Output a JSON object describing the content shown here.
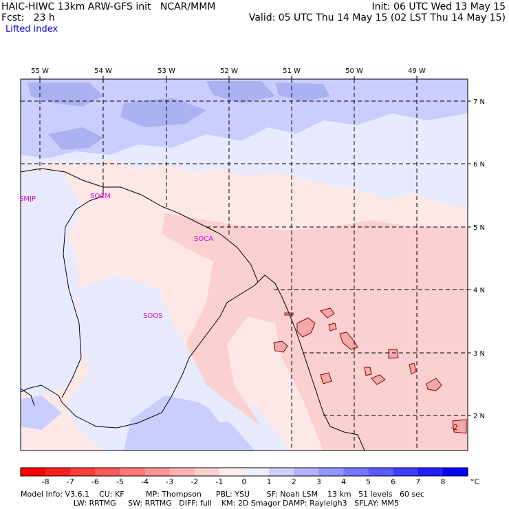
{
  "header": {
    "model_line": "HAIC-HIWC 13km ARW-GFS init   NCAR/MMM",
    "fcst_line": "Fcst:   23 h",
    "field_name": "Lifted index",
    "init_line": "Init: 06 UTC Wed 13 May 15",
    "valid_line": "Valid: 05 UTC Thu 14 May 15 (02 LST Thu 14 May 15)"
  },
  "map": {
    "lon_labels": [
      "55 W",
      "54 W",
      "53 W",
      "52 W",
      "51 W",
      "50 W",
      "49 W"
    ],
    "lat_labels": [
      "7 N",
      "6 N",
      "5 N",
      "4 N",
      "3 N",
      "2 N"
    ],
    "stations": [
      "SMJP",
      "SOCM",
      "SOCA",
      "SOOS"
    ],
    "contour_label": "-2",
    "colors": {
      "positive_light": "#e8ebff",
      "positive_mid": "#c9ceff",
      "positive_deep": "#aab2f2",
      "negative_light": "#fde7e7",
      "negative_mid": "#fad0d0",
      "negative_contour_fill": "#f2a9a9",
      "contour_line": "#8b0000"
    }
  },
  "colorbar": {
    "labels": [
      "-8",
      "-7",
      "-6",
      "-5",
      "-4",
      "-3",
      "-2",
      "-1",
      "0",
      "1",
      "2",
      "3",
      "4",
      "5",
      "6",
      "7",
      "8"
    ],
    "unit": "°C",
    "colors": [
      "#ff0000",
      "#ff1f1f",
      "#ff3d3d",
      "#ff5a5a",
      "#ff7777",
      "#ff9494",
      "#ffb3b3",
      "#ffd0d0",
      "#ffeded",
      "#ededff",
      "#d0d0ff",
      "#b3b3ff",
      "#9494ff",
      "#7777ff",
      "#5a5aff",
      "#3d3dff",
      "#1f1fff",
      "#0000ff"
    ]
  },
  "footer": {
    "line1": "Model Info: V3.6.1    CU: KF         MP: Thompson      PBL: YSU       SF: Noah LSM    13 km   51 levels   60 sec",
    "line2": "                      LW: RRTMG     SW: RRTMG   DIFF: full    KM: 2D Smagor DAMP: Rayleigh3   SFLAY: MM5"
  }
}
